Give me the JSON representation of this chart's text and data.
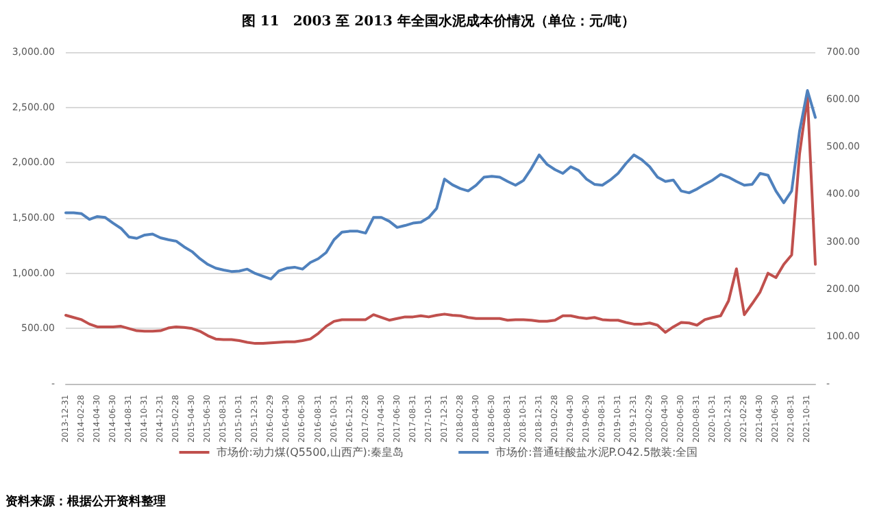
{
  "chart_data": {
    "type": "line",
    "title": "图 11　2003 至 2013 年全国水泥成本价情况（单位：元/吨）",
    "categories": [
      "2013-12-31",
      null,
      "2014-02-28",
      null,
      "2014-04-30",
      null,
      "2014-06-30",
      null,
      "2014-08-31",
      null,
      "2014-10-31",
      null,
      "2014-12-31",
      null,
      "2015-02-28",
      null,
      "2015-04-30",
      null,
      "2015-06-30",
      null,
      "2015-08-31",
      null,
      "2015-10-31",
      null,
      "2015-12-31",
      null,
      "2016-02-29",
      null,
      "2016-04-30",
      null,
      "2016-06-30",
      null,
      "2016-08-31",
      null,
      "2016-10-31",
      null,
      "2016-12-31",
      null,
      "2017-02-28",
      null,
      "2017-04-30",
      null,
      "2017-06-30",
      null,
      "2017-08-31",
      null,
      "2017-10-31",
      null,
      "2017-12-31",
      null,
      "2018-02-28",
      null,
      "2018-04-30",
      null,
      "2018-06-30",
      null,
      "2018-08-31",
      null,
      "2018-10-31",
      null,
      "2018-12-31",
      null,
      "2019-02-28",
      null,
      "2019-04-30",
      null,
      "2019-06-30",
      null,
      "2019-08-31",
      null,
      "2019-10-31",
      null,
      "2019-12-31",
      null,
      "2020-02-29",
      null,
      "2020-04-30",
      null,
      "2020-06-30",
      null,
      "2020-08-31",
      null,
      "2020-10-31",
      null,
      "2020-12-31",
      null,
      "2021-02-28",
      null,
      "2021-04-30",
      null,
      "2021-06-30",
      null,
      "2021-08-31",
      null,
      "2021-10-31",
      null
    ],
    "series": [
      {
        "name": "市场价:动力煤(Q5500,山西产):秦皇岛",
        "color": "#c0504d",
        "values": [
          620,
          600,
          580,
          540,
          515,
          515,
          515,
          520,
          500,
          480,
          475,
          475,
          480,
          505,
          515,
          510,
          500,
          475,
          435,
          405,
          400,
          400,
          390,
          375,
          365,
          365,
          370,
          375,
          380,
          380,
          390,
          405,
          455,
          520,
          565,
          580,
          580,
          580,
          580,
          625,
          600,
          575,
          590,
          605,
          605,
          615,
          605,
          620,
          630,
          620,
          615,
          600,
          590,
          590,
          590,
          590,
          575,
          580,
          580,
          575,
          565,
          565,
          575,
          615,
          615,
          600,
          590,
          600,
          580,
          575,
          575,
          555,
          540,
          540,
          550,
          530,
          465,
          515,
          555,
          550,
          530,
          580,
          600,
          615,
          750,
          1040,
          625,
          725,
          830,
          1000,
          960,
          1080,
          1165,
          2080,
          2600,
          1080
        ]
      },
      {
        "name": "市场价:普通硅酸盐水泥P.O42.5散装:全国",
        "color": "#4f81bd",
        "axis": "y2",
        "values": [
          361,
          361,
          359,
          347,
          353,
          351,
          339,
          328,
          310,
          307,
          314,
          316,
          308,
          304,
          301,
          289,
          279,
          264,
          252,
          244,
          240,
          237,
          238,
          242,
          233,
          227,
          221,
          238,
          244,
          246,
          242,
          256,
          264,
          277,
          304,
          320,
          322,
          322,
          318,
          351,
          351,
          343,
          330,
          334,
          339,
          341,
          351,
          370,
          432,
          420,
          412,
          407,
          419,
          436,
          438,
          436,
          427,
          419,
          429,
          454,
          483,
          463,
          452,
          444,
          458,
          450,
          432,
          421,
          419,
          430,
          444,
          465,
          483,
          473,
          458,
          436,
          427,
          430,
          407,
          403,
          411,
          421,
          430,
          442,
          436,
          427,
          419,
          421,
          444,
          440,
          407,
          382,
          407,
          533,
          619,
          562
        ]
      }
    ],
    "ylim": [
      0,
      3000
    ],
    "yticks": [
      {
        "value": 0,
        "label": "-"
      },
      {
        "value": 500,
        "label": "500.00"
      },
      {
        "value": 1000,
        "label": "1,000.00"
      },
      {
        "value": 1500,
        "label": "1,500.00"
      },
      {
        "value": 2000,
        "label": "2,000.00"
      },
      {
        "value": 2500,
        "label": "2,500.00"
      },
      {
        "value": 3000,
        "label": "3,000.00"
      }
    ],
    "y2lim": [
      0,
      700
    ],
    "y2ticks": [
      {
        "value": 0,
        "label": "-"
      },
      {
        "value": 100,
        "label": "100.00"
      },
      {
        "value": 200,
        "label": "200.00"
      },
      {
        "value": 300,
        "label": "300.00"
      },
      {
        "value": 400,
        "label": "400.00"
      },
      {
        "value": 500,
        "label": "500.00"
      },
      {
        "value": 600,
        "label": "600.00"
      },
      {
        "value": 700,
        "label": "700.00"
      }
    ],
    "grid": "y",
    "legend": "bottom",
    "marker": "none",
    "line_style": "solid",
    "annotations": [
      "资料来源：根据公开资料整理"
    ]
  }
}
